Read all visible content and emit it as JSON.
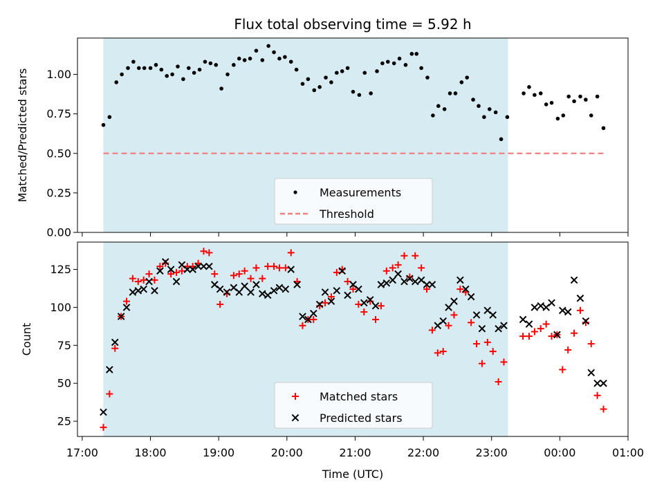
{
  "figure": {
    "title": "Flux total observing time = 5.92 h",
    "xlabel": "Time (UTC)",
    "x_ticks": [
      {
        "h": 17,
        "label": "17:00"
      },
      {
        "h": 18,
        "label": "18:00"
      },
      {
        "h": 19,
        "label": "19:00"
      },
      {
        "h": 20,
        "label": "20:00"
      },
      {
        "h": 21,
        "label": "21:00"
      },
      {
        "h": 22,
        "label": "22:00"
      },
      {
        "h": 23,
        "label": "23:00"
      },
      {
        "h": 24,
        "label": "00:00"
      },
      {
        "h": 25,
        "label": "01:00"
      }
    ],
    "xlim": [
      16.93,
      25.0
    ],
    "shaded_span": {
      "from": 17.31,
      "to": 23.24,
      "color": "#add8e6"
    }
  },
  "chart_data": [
    {
      "type": "scatter",
      "ylabel": "Matched/Predicted stars",
      "ylim": [
        0,
        1.23
      ],
      "y_ticks": [
        {
          "v": 0.0,
          "label": "0.00"
        },
        {
          "v": 0.25,
          "label": "0.25"
        },
        {
          "v": 0.5,
          "label": "0.50"
        },
        {
          "v": 0.75,
          "label": "0.75"
        },
        {
          "v": 1.0,
          "label": "1.00"
        }
      ],
      "legend": {
        "placement": "lower center",
        "entries": [
          "Measurements",
          "Threshold"
        ]
      },
      "threshold": {
        "name": "Threshold",
        "value": 0.5,
        "x_from": 17.31,
        "x_to": 24.65,
        "color": "#f08080"
      },
      "series": [
        {
          "name": "Measurements",
          "color": "#000000",
          "x": [
            17.31,
            17.4,
            17.5,
            17.58,
            17.67,
            17.75,
            17.83,
            17.91,
            18.0,
            18.08,
            18.16,
            18.24,
            18.32,
            18.4,
            18.48,
            18.56,
            18.64,
            18.72,
            18.8,
            18.88,
            18.96,
            19.04,
            19.13,
            19.22,
            19.3,
            19.38,
            19.46,
            19.55,
            19.64,
            19.73,
            19.81,
            19.89,
            19.97,
            20.06,
            20.14,
            20.23,
            20.31,
            20.4,
            20.48,
            20.57,
            20.65,
            20.73,
            20.81,
            20.89,
            20.97,
            21.06,
            21.14,
            21.23,
            21.32,
            21.4,
            21.48,
            21.57,
            21.65,
            21.74,
            21.83,
            21.9,
            21.97,
            22.06,
            22.14,
            22.22,
            22.31,
            22.39,
            22.47,
            22.56,
            22.64,
            22.73,
            22.81,
            22.89,
            22.97,
            23.06,
            23.14,
            23.23,
            23.47,
            23.55,
            23.63,
            23.72,
            23.8,
            23.88,
            23.97,
            24.05,
            24.13,
            24.21,
            24.3,
            24.38,
            24.46,
            24.55,
            24.64
          ],
          "y": [
            0.68,
            0.73,
            0.95,
            1.0,
            1.04,
            1.08,
            1.04,
            1.04,
            1.04,
            1.06,
            1.03,
            0.99,
            1.0,
            1.05,
            0.97,
            1.04,
            1.01,
            1.03,
            1.08,
            1.07,
            1.06,
            0.91,
            1.0,
            1.06,
            1.1,
            1.09,
            1.1,
            1.15,
            1.09,
            1.18,
            1.14,
            1.1,
            1.11,
            1.08,
            1.03,
            0.94,
            0.97,
            0.9,
            0.92,
            0.98,
            0.95,
            1.01,
            1.02,
            1.04,
            0.89,
            0.87,
            1.01,
            0.88,
            1.02,
            1.07,
            1.08,
            1.07,
            1.1,
            1.06,
            1.13,
            1.13,
            1.04,
            0.98,
            0.74,
            0.8,
            0.78,
            0.88,
            0.88,
            0.95,
            0.98,
            0.84,
            0.8,
            0.73,
            0.78,
            0.76,
            0.59,
            0.73,
            0.88,
            0.92,
            0.87,
            0.88,
            0.81,
            0.82,
            0.72,
            0.74,
            0.86,
            0.83,
            0.86,
            0.84,
            0.74,
            0.86,
            0.66
          ]
        }
      ]
    },
    {
      "type": "scatter",
      "ylabel": "Count",
      "ylim": [
        15,
        143
      ],
      "y_ticks": [
        {
          "v": 25,
          "label": "25"
        },
        {
          "v": 50,
          "label": "50"
        },
        {
          "v": 75,
          "label": "75"
        },
        {
          "v": 100,
          "label": "100"
        },
        {
          "v": 125,
          "label": "125"
        }
      ],
      "legend": {
        "placement": "lower center",
        "entries": [
          "Matched stars",
          "Predicted stars"
        ]
      },
      "series": [
        {
          "name": "Matched stars",
          "marker": "plus",
          "color": "#ff0000",
          "x": [
            17.31,
            17.4,
            17.48,
            17.57,
            17.65,
            17.74,
            17.82,
            17.9,
            17.98,
            18.06,
            18.14,
            18.22,
            18.3,
            18.38,
            18.46,
            18.54,
            18.62,
            18.7,
            18.78,
            18.86,
            18.94,
            19.02,
            19.12,
            19.22,
            19.3,
            19.38,
            19.47,
            19.55,
            19.64,
            19.72,
            19.81,
            19.89,
            19.98,
            20.06,
            20.15,
            20.23,
            20.31,
            20.39,
            20.48,
            20.56,
            20.65,
            20.73,
            20.81,
            20.89,
            20.97,
            21.05,
            21.13,
            21.22,
            21.3,
            21.38,
            21.46,
            21.55,
            21.63,
            21.72,
            21.8,
            21.88,
            21.97,
            22.05,
            22.13,
            22.21,
            22.29,
            22.37,
            22.45,
            22.54,
            22.62,
            22.7,
            22.78,
            22.86,
            22.94,
            23.02,
            23.1,
            23.18,
            23.46,
            23.55,
            23.63,
            23.72,
            23.8,
            23.88,
            23.96,
            24.04,
            24.12,
            24.21,
            24.3,
            24.38,
            24.46,
            24.55,
            24.64
          ],
          "y": [
            21,
            43,
            73,
            94,
            104,
            119,
            117,
            118,
            122,
            118,
            127,
            129,
            122,
            123,
            124,
            127,
            127,
            129,
            137,
            136,
            122,
            102,
            109,
            121,
            122,
            124,
            119,
            126,
            119,
            127,
            127,
            126,
            126,
            136,
            117,
            88,
            92,
            92,
            101,
            103,
            107,
            123,
            125,
            117,
            112,
            102,
            97,
            104,
            92,
            101,
            124,
            126,
            128,
            134,
            120,
            134,
            126,
            112,
            85,
            70,
            71,
            88,
            95,
            112,
            110,
            90,
            76,
            63,
            77,
            71,
            51,
            64,
            81,
            81,
            84,
            86,
            89,
            81,
            82,
            59,
            72,
            83,
            98,
            90,
            76,
            42,
            33
          ]
        },
        {
          "name": "Predicted stars",
          "marker": "x",
          "color": "#000000",
          "x": [
            17.31,
            17.4,
            17.48,
            17.57,
            17.65,
            17.74,
            17.82,
            17.9,
            17.98,
            18.06,
            18.14,
            18.22,
            18.3,
            18.38,
            18.46,
            18.54,
            18.62,
            18.7,
            18.78,
            18.86,
            18.94,
            19.02,
            19.12,
            19.22,
            19.3,
            19.38,
            19.47,
            19.55,
            19.64,
            19.72,
            19.81,
            19.89,
            19.98,
            20.06,
            20.15,
            20.23,
            20.31,
            20.39,
            20.48,
            20.56,
            20.65,
            20.73,
            20.81,
            20.89,
            20.97,
            21.05,
            21.13,
            21.22,
            21.3,
            21.38,
            21.46,
            21.55,
            21.63,
            21.72,
            21.8,
            21.88,
            21.97,
            22.05,
            22.13,
            22.21,
            22.29,
            22.37,
            22.45,
            22.54,
            22.62,
            22.7,
            22.78,
            22.86,
            22.94,
            23.02,
            23.1,
            23.18,
            23.46,
            23.55,
            23.63,
            23.72,
            23.8,
            23.88,
            23.96,
            24.04,
            24.12,
            24.21,
            24.3,
            24.38,
            24.46,
            24.55,
            24.64
          ],
          "y": [
            31,
            59,
            77,
            94,
            100,
            110,
            111,
            112,
            117,
            111,
            124,
            130,
            125,
            117,
            128,
            125,
            125,
            127,
            127,
            127,
            115,
            112,
            110,
            113,
            110,
            114,
            110,
            115,
            109,
            108,
            111,
            113,
            112,
            125,
            115,
            94,
            92,
            96,
            102,
            110,
            104,
            111,
            124,
            108,
            115,
            112,
            103,
            105,
            101,
            115,
            116,
            118,
            122,
            117,
            119,
            117,
            118,
            115,
            115,
            88,
            91,
            100,
            104,
            118,
            112,
            107,
            95,
            86,
            98,
            95,
            86,
            88,
            92,
            89,
            100,
            101,
            100,
            103,
            82,
            98,
            97,
            118,
            106,
            91,
            57,
            50,
            50
          ]
        }
      ]
    }
  ]
}
